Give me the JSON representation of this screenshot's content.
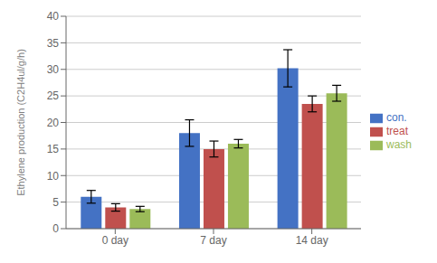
{
  "chart_data": {
    "type": "bar",
    "categories": [
      "0 day",
      "7 day",
      "14 day"
    ],
    "series": [
      {
        "name": "con.",
        "color": "#4472C4",
        "values": [
          6.0,
          18.0,
          30.2
        ],
        "errors": [
          1.2,
          2.5,
          3.5
        ]
      },
      {
        "name": "treat",
        "color": "#C0504D",
        "values": [
          4.0,
          15.0,
          23.5
        ],
        "errors": [
          0.7,
          1.5,
          1.5
        ]
      },
      {
        "name": "wash",
        "color": "#9BBB59",
        "values": [
          3.7,
          16.0,
          25.5
        ],
        "errors": [
          0.5,
          0.8,
          1.5
        ]
      }
    ],
    "ylabel": "Ethylene production (C2H4ul/g/h)",
    "ylim": [
      0,
      40
    ],
    "yticks": [
      0,
      5,
      10,
      15,
      20,
      25,
      30,
      35,
      40
    ],
    "grid": true,
    "legend": "right"
  }
}
